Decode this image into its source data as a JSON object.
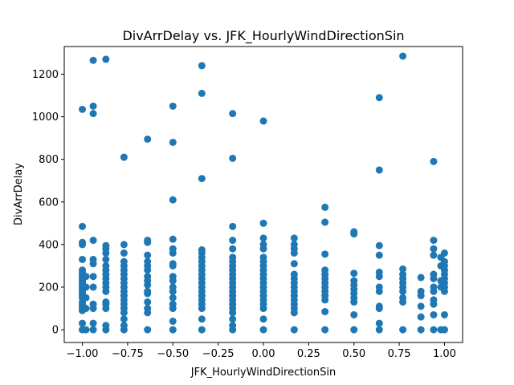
{
  "chart_data": {
    "type": "scatter",
    "title": "DivArrDelay vs. JFK_HourlyWindDirectionSin",
    "xlabel": "JFK_HourlyWindDirectionSin",
    "ylabel": "DivArrDelay",
    "xlim": [
      -1.1,
      1.1
    ],
    "ylim": [
      -60,
      1330
    ],
    "xticks": [
      -1.0,
      -0.75,
      -0.5,
      -0.25,
      0.0,
      0.25,
      0.5,
      0.75,
      1.0
    ],
    "xtick_labels": [
      "−1.00",
      "−0.75",
      "−0.50",
      "−0.25",
      "0.00",
      "0.25",
      "0.50",
      "0.75",
      "1.00"
    ],
    "yticks": [
      0,
      200,
      400,
      600,
      800,
      1000,
      1200
    ],
    "ytick_labels": [
      "0",
      "200",
      "400",
      "600",
      "800",
      "1000",
      "1200"
    ],
    "grid": false,
    "marker_color": "#1f77b4",
    "series": [
      {
        "points": [
          [
            -1.0,
            0
          ],
          [
            -1.0,
            30
          ],
          [
            -1.0,
            90
          ],
          [
            -1.0,
            100
          ],
          [
            -1.0,
            110
          ],
          [
            -1.0,
            120
          ],
          [
            -1.0,
            130
          ],
          [
            -1.0,
            150
          ],
          [
            -1.0,
            160
          ],
          [
            -1.0,
            170
          ],
          [
            -1.0,
            180
          ],
          [
            -1.0,
            190
          ],
          [
            -1.0,
            200
          ],
          [
            -1.0,
            210
          ],
          [
            -1.0,
            220
          ],
          [
            -1.0,
            230
          ],
          [
            -1.0,
            240
          ],
          [
            -1.0,
            250
          ],
          [
            -1.0,
            260
          ],
          [
            -1.0,
            270
          ],
          [
            -1.0,
            280
          ],
          [
            -1.0,
            330
          ],
          [
            -1.0,
            400
          ],
          [
            -1.0,
            410
          ],
          [
            -1.0,
            485
          ],
          [
            -1.0,
            1035
          ],
          [
            -0.98,
            0
          ],
          [
            -0.98,
            100
          ],
          [
            -0.98,
            150
          ],
          [
            -0.98,
            200
          ],
          [
            -0.98,
            250
          ],
          [
            -0.94,
            0
          ],
          [
            -0.94,
            30
          ],
          [
            -0.94,
            100
          ],
          [
            -0.94,
            120
          ],
          [
            -0.94,
            200
          ],
          [
            -0.94,
            250
          ],
          [
            -0.94,
            310
          ],
          [
            -0.94,
            330
          ],
          [
            -0.94,
            420
          ],
          [
            -0.94,
            1015
          ],
          [
            -0.94,
            1050
          ],
          [
            -0.94,
            1265
          ],
          [
            -0.87,
            0
          ],
          [
            -0.87,
            20
          ],
          [
            -0.87,
            100
          ],
          [
            -0.87,
            120
          ],
          [
            -0.87,
            130
          ],
          [
            -0.87,
            180
          ],
          [
            -0.87,
            200
          ],
          [
            -0.87,
            220
          ],
          [
            -0.87,
            240
          ],
          [
            -0.87,
            260
          ],
          [
            -0.87,
            280
          ],
          [
            -0.87,
            300
          ],
          [
            -0.87,
            330
          ],
          [
            -0.87,
            360
          ],
          [
            -0.87,
            380
          ],
          [
            -0.87,
            395
          ],
          [
            -0.87,
            1270
          ],
          [
            -0.77,
            0
          ],
          [
            -0.77,
            20
          ],
          [
            -0.77,
            50
          ],
          [
            -0.77,
            80
          ],
          [
            -0.77,
            100
          ],
          [
            -0.77,
            120
          ],
          [
            -0.77,
            140
          ],
          [
            -0.77,
            160
          ],
          [
            -0.77,
            180
          ],
          [
            -0.77,
            200
          ],
          [
            -0.77,
            220
          ],
          [
            -0.77,
            240
          ],
          [
            -0.77,
            260
          ],
          [
            -0.77,
            280
          ],
          [
            -0.77,
            300
          ],
          [
            -0.77,
            320
          ],
          [
            -0.77,
            360
          ],
          [
            -0.77,
            400
          ],
          [
            -0.77,
            810
          ],
          [
            -0.64,
            0
          ],
          [
            -0.64,
            80
          ],
          [
            -0.64,
            100
          ],
          [
            -0.64,
            130
          ],
          [
            -0.64,
            170
          ],
          [
            -0.64,
            180
          ],
          [
            -0.64,
            210
          ],
          [
            -0.64,
            230
          ],
          [
            -0.64,
            250
          ],
          [
            -0.64,
            280
          ],
          [
            -0.64,
            300
          ],
          [
            -0.64,
            320
          ],
          [
            -0.64,
            350
          ],
          [
            -0.64,
            410
          ],
          [
            -0.64,
            420
          ],
          [
            -0.64,
            895
          ],
          [
            -0.5,
            0
          ],
          [
            -0.5,
            40
          ],
          [
            -0.5,
            100
          ],
          [
            -0.5,
            120
          ],
          [
            -0.5,
            150
          ],
          [
            -0.5,
            180
          ],
          [
            -0.5,
            200
          ],
          [
            -0.5,
            230
          ],
          [
            -0.5,
            250
          ],
          [
            -0.5,
            300
          ],
          [
            -0.5,
            310
          ],
          [
            -0.5,
            360
          ],
          [
            -0.5,
            380
          ],
          [
            -0.5,
            425
          ],
          [
            -0.5,
            610
          ],
          [
            -0.5,
            880
          ],
          [
            -0.5,
            1050
          ],
          [
            -0.34,
            0
          ],
          [
            -0.34,
            50
          ],
          [
            -0.34,
            100
          ],
          [
            -0.34,
            120
          ],
          [
            -0.34,
            140
          ],
          [
            -0.34,
            160
          ],
          [
            -0.34,
            180
          ],
          [
            -0.34,
            200
          ],
          [
            -0.34,
            220
          ],
          [
            -0.34,
            240
          ],
          [
            -0.34,
            260
          ],
          [
            -0.34,
            280
          ],
          [
            -0.34,
            300
          ],
          [
            -0.34,
            320
          ],
          [
            -0.34,
            340
          ],
          [
            -0.34,
            360
          ],
          [
            -0.34,
            375
          ],
          [
            -0.34,
            710
          ],
          [
            -0.34,
            1110
          ],
          [
            -0.34,
            1240
          ],
          [
            -0.17,
            0
          ],
          [
            -0.17,
            20
          ],
          [
            -0.17,
            50
          ],
          [
            -0.17,
            80
          ],
          [
            -0.17,
            100
          ],
          [
            -0.17,
            120
          ],
          [
            -0.17,
            140
          ],
          [
            -0.17,
            160
          ],
          [
            -0.17,
            180
          ],
          [
            -0.17,
            200
          ],
          [
            -0.17,
            220
          ],
          [
            -0.17,
            240
          ],
          [
            -0.17,
            260
          ],
          [
            -0.17,
            280
          ],
          [
            -0.17,
            300
          ],
          [
            -0.17,
            320
          ],
          [
            -0.17,
            340
          ],
          [
            -0.17,
            380
          ],
          [
            -0.17,
            420
          ],
          [
            -0.17,
            485
          ],
          [
            -0.17,
            805
          ],
          [
            -0.17,
            1015
          ],
          [
            0.0,
            0
          ],
          [
            0.0,
            50
          ],
          [
            0.0,
            100
          ],
          [
            0.0,
            120
          ],
          [
            0.0,
            140
          ],
          [
            0.0,
            160
          ],
          [
            0.0,
            180
          ],
          [
            0.0,
            200
          ],
          [
            0.0,
            220
          ],
          [
            0.0,
            240
          ],
          [
            0.0,
            260
          ],
          [
            0.0,
            280
          ],
          [
            0.0,
            300
          ],
          [
            0.0,
            320
          ],
          [
            0.0,
            340
          ],
          [
            0.0,
            380
          ],
          [
            0.0,
            400
          ],
          [
            0.0,
            430
          ],
          [
            0.0,
            500
          ],
          [
            0.0,
            980
          ],
          [
            0.17,
            0
          ],
          [
            0.17,
            80
          ],
          [
            0.17,
            100
          ],
          [
            0.17,
            120
          ],
          [
            0.17,
            140
          ],
          [
            0.17,
            160
          ],
          [
            0.17,
            180
          ],
          [
            0.17,
            200
          ],
          [
            0.17,
            220
          ],
          [
            0.17,
            240
          ],
          [
            0.17,
            260
          ],
          [
            0.17,
            310
          ],
          [
            0.17,
            360
          ],
          [
            0.17,
            380
          ],
          [
            0.17,
            400
          ],
          [
            0.17,
            430
          ],
          [
            0.34,
            0
          ],
          [
            0.34,
            85
          ],
          [
            0.34,
            140
          ],
          [
            0.34,
            160
          ],
          [
            0.34,
            180
          ],
          [
            0.34,
            200
          ],
          [
            0.34,
            220
          ],
          [
            0.34,
            240
          ],
          [
            0.34,
            260
          ],
          [
            0.34,
            280
          ],
          [
            0.34,
            355
          ],
          [
            0.34,
            505
          ],
          [
            0.34,
            575
          ],
          [
            0.5,
            0
          ],
          [
            0.5,
            70
          ],
          [
            0.5,
            130
          ],
          [
            0.5,
            150
          ],
          [
            0.5,
            170
          ],
          [
            0.5,
            190
          ],
          [
            0.5,
            210
          ],
          [
            0.5,
            230
          ],
          [
            0.5,
            265
          ],
          [
            0.5,
            450
          ],
          [
            0.5,
            460
          ],
          [
            0.64,
            0
          ],
          [
            0.64,
            30
          ],
          [
            0.64,
            100
          ],
          [
            0.64,
            110
          ],
          [
            0.64,
            180
          ],
          [
            0.64,
            200
          ],
          [
            0.64,
            250
          ],
          [
            0.64,
            270
          ],
          [
            0.64,
            350
          ],
          [
            0.64,
            395
          ],
          [
            0.64,
            750
          ],
          [
            0.64,
            1090
          ],
          [
            0.77,
            0
          ],
          [
            0.77,
            130
          ],
          [
            0.77,
            150
          ],
          [
            0.77,
            180
          ],
          [
            0.77,
            200
          ],
          [
            0.77,
            220
          ],
          [
            0.77,
            240
          ],
          [
            0.77,
            260
          ],
          [
            0.77,
            285
          ],
          [
            0.77,
            1285
          ],
          [
            0.87,
            0
          ],
          [
            0.87,
            60
          ],
          [
            0.87,
            110
          ],
          [
            0.87,
            160
          ],
          [
            0.87,
            180
          ],
          [
            0.87,
            245
          ],
          [
            0.94,
            0
          ],
          [
            0.94,
            70
          ],
          [
            0.94,
            120
          ],
          [
            0.94,
            140
          ],
          [
            0.94,
            180
          ],
          [
            0.94,
            200
          ],
          [
            0.94,
            240
          ],
          [
            0.94,
            260
          ],
          [
            0.94,
            350
          ],
          [
            0.94,
            380
          ],
          [
            0.94,
            420
          ],
          [
            0.94,
            790
          ],
          [
            0.98,
            0
          ],
          [
            0.98,
            200
          ],
          [
            0.98,
            230
          ],
          [
            0.98,
            300
          ],
          [
            0.98,
            340
          ],
          [
            1.0,
            0
          ],
          [
            1.0,
            70
          ],
          [
            1.0,
            180
          ],
          [
            1.0,
            200
          ],
          [
            1.0,
            220
          ],
          [
            1.0,
            240
          ],
          [
            1.0,
            260
          ],
          [
            1.0,
            280
          ],
          [
            1.0,
            300
          ],
          [
            1.0,
            320
          ],
          [
            1.0,
            360
          ]
        ]
      }
    ]
  }
}
